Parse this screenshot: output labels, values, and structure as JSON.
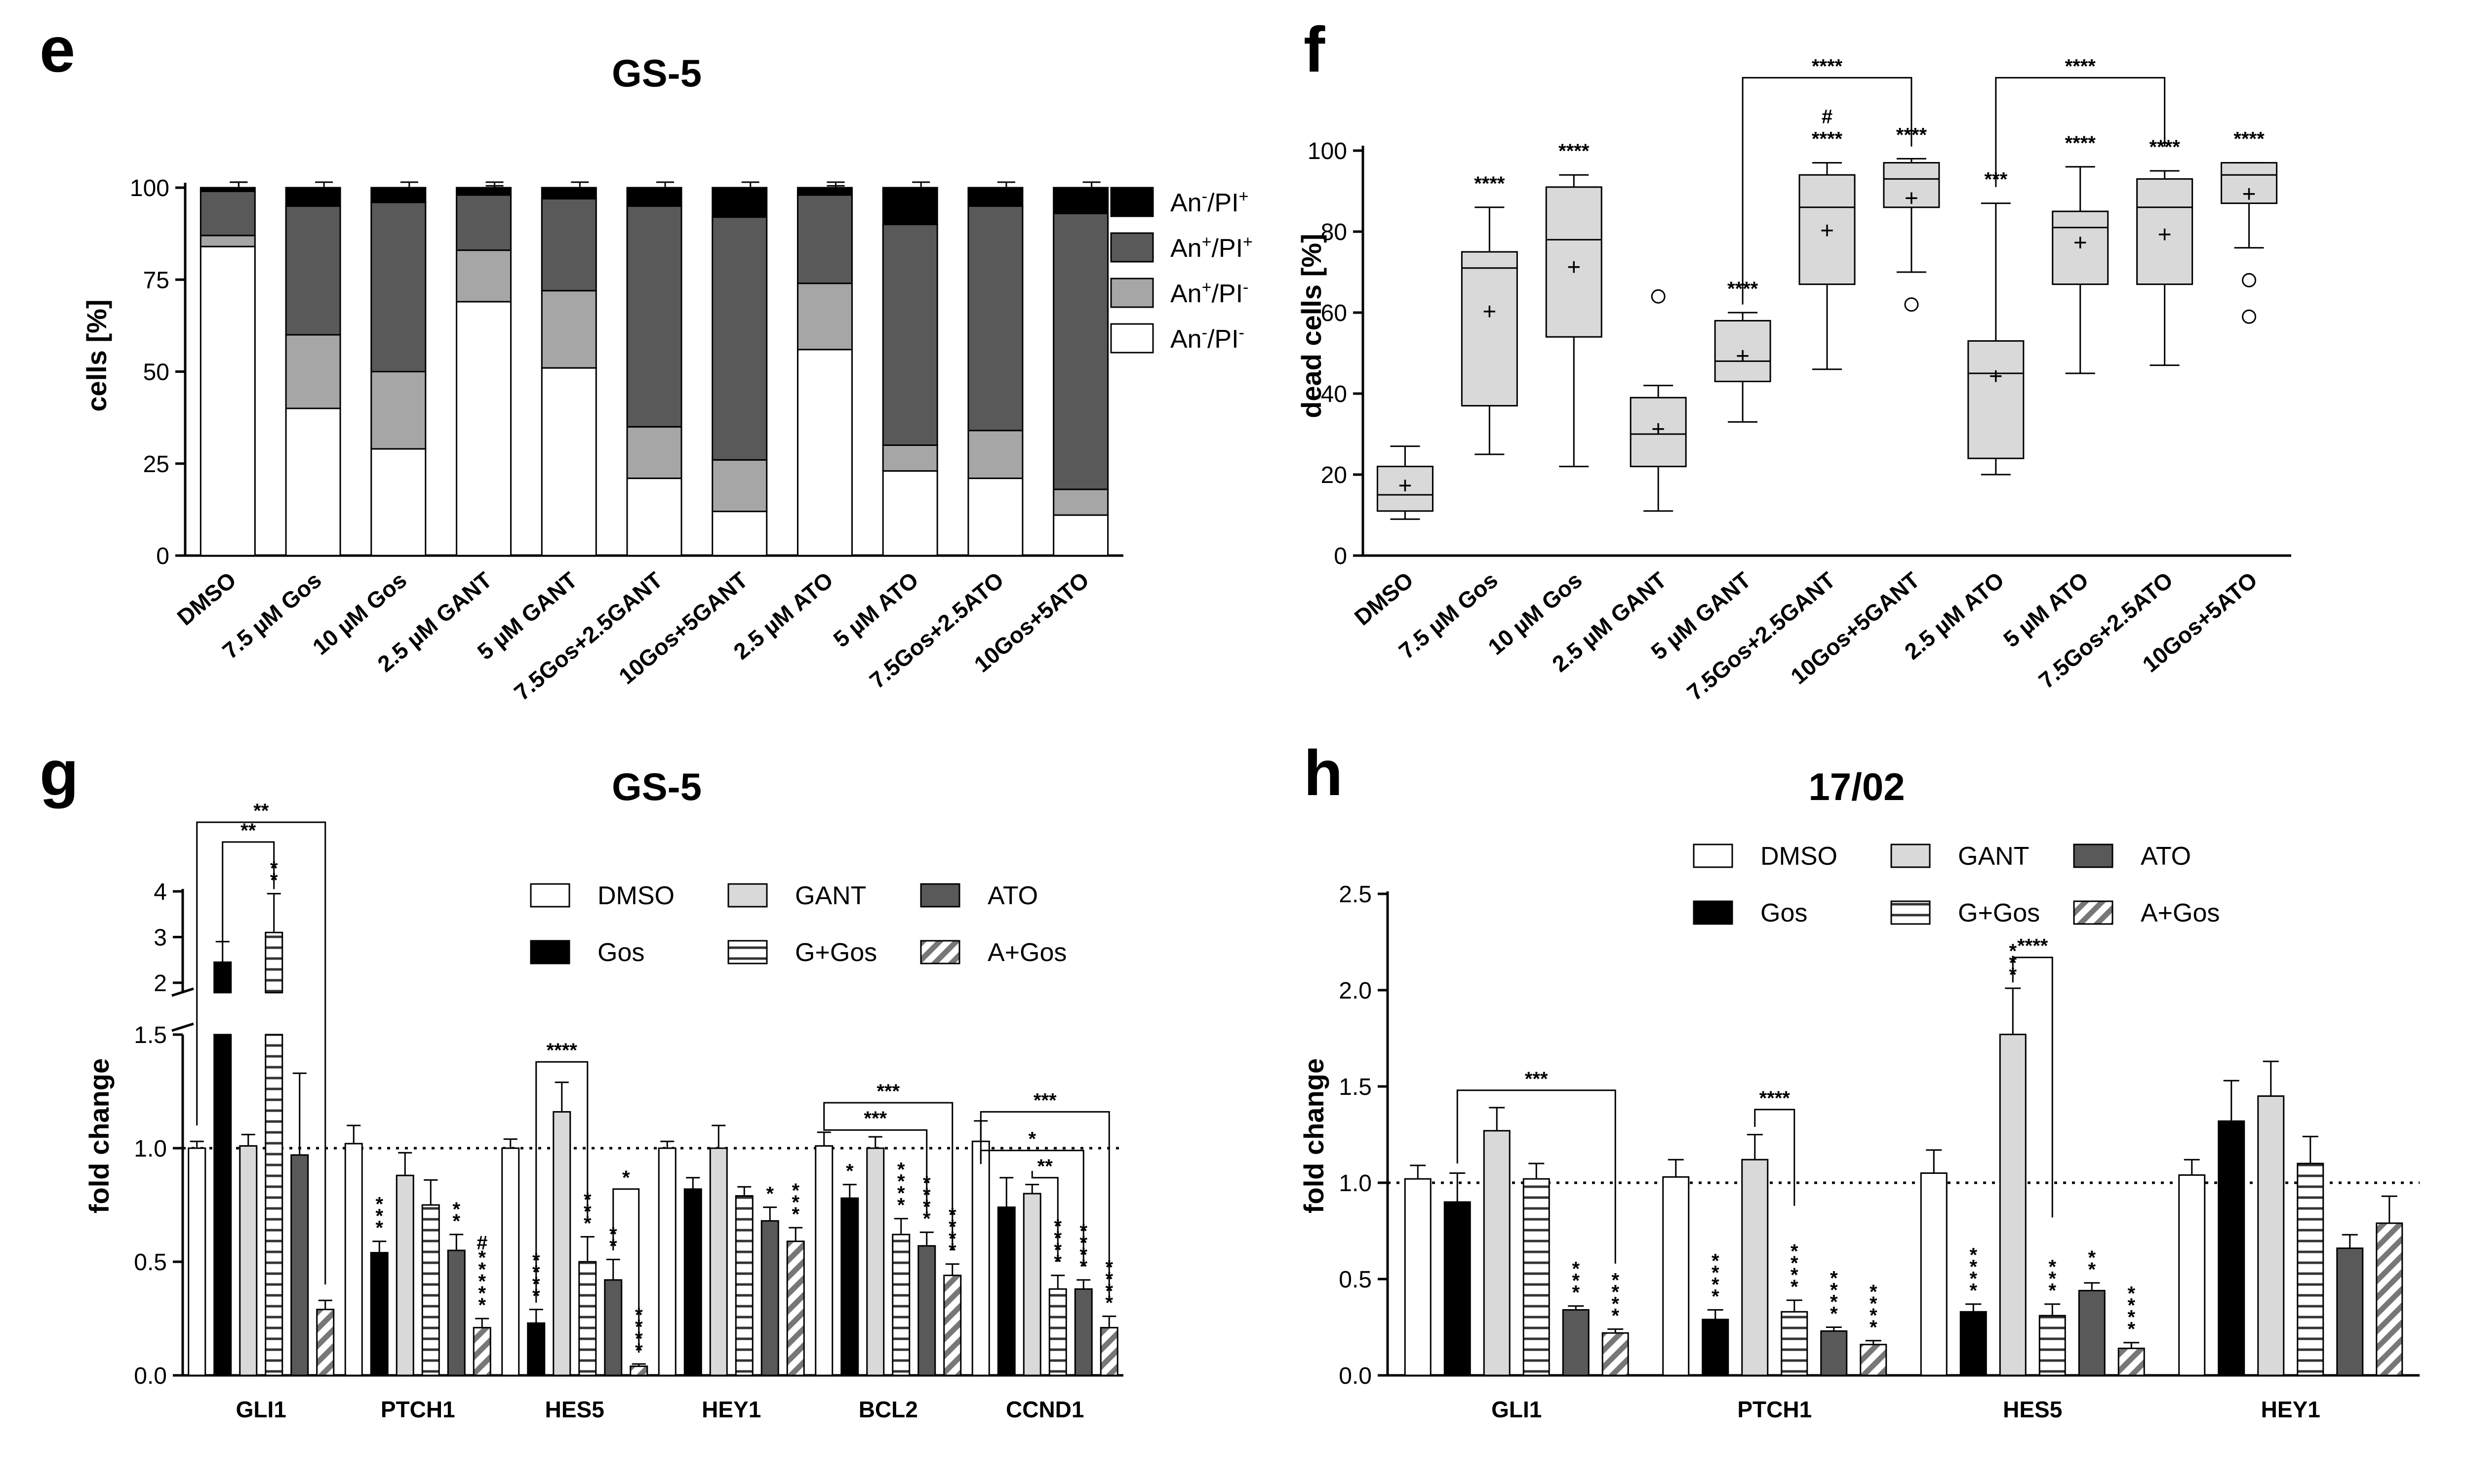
{
  "panel_labels": {
    "e": "e",
    "f": "f",
    "g": "g",
    "h": "h"
  },
  "chart_data": [
    {
      "panel": "e",
      "type": "bar",
      "stacked": true,
      "title": "GS-5",
      "ylabel": "cells [%]",
      "ylim": [
        0,
        100
      ],
      "yticks": [
        "0",
        "25",
        "50",
        "75",
        "100"
      ],
      "categories": [
        "DMSO",
        "7.5 µM Gos",
        "10 µM Gos",
        "2.5 µM GANT",
        "5 µM GANT",
        "7.5Gos+2.5GANT",
        "10Gos+5GANT",
        "2.5 µM ATO",
        "5 µM ATO",
        "7.5Gos+2.5ATO",
        "10Gos+5ATO"
      ],
      "series": [
        {
          "name": "An⁻/PI⁻",
          "color": "#ffffff",
          "values": [
            84,
            40,
            29,
            69,
            51,
            21,
            12,
            56,
            23,
            21,
            11
          ]
        },
        {
          "name": "An⁺/PI⁻",
          "color": "#a6a6a6",
          "values": [
            3,
            20,
            21,
            14,
            21,
            14,
            14,
            18,
            7,
            13,
            7
          ]
        },
        {
          "name": "An⁺/PI⁺",
          "color": "#595959",
          "values": [
            12,
            35,
            46,
            15,
            25,
            60,
            66,
            24,
            60,
            61,
            75
          ]
        },
        {
          "name": "An⁻/PI⁺",
          "color": "#000000",
          "values": [
            1,
            5,
            4,
            2,
            3,
            5,
            8,
            2,
            10,
            5,
            7
          ]
        }
      ],
      "legend": [
        {
          "base": "An",
          "sup1": "-",
          "mid": "/PI",
          "sup2": "+"
        },
        {
          "base": "An",
          "sup1": "+",
          "mid": "/PI",
          "sup2": "+"
        },
        {
          "base": "An",
          "sup1": "+",
          "mid": "/PI",
          "sup2": "-"
        },
        {
          "base": "An",
          "sup1": "-",
          "mid": "/PI",
          "sup2": "-"
        }
      ]
    },
    {
      "panel": "f",
      "type": "boxplot",
      "title": "",
      "ylabel": "dead cells [%]",
      "ylim": [
        0,
        100
      ],
      "yticks": [
        "0",
        "20",
        "40",
        "60",
        "80",
        "100"
      ],
      "categories": [
        "DMSO",
        "7.5 µM Gos",
        "10 µM Gos",
        "2.5 µM GANT",
        "5 µM GANT",
        "7.5Gos+2.5GANT",
        "10Gos+5GANT",
        "2.5 µM ATO",
        "5 µM ATO",
        "7.5Gos+2.5ATO",
        "10Gos+5ATO"
      ],
      "boxes": [
        {
          "min": 9,
          "q1": 11,
          "median": 15,
          "q3": 22,
          "max": 27,
          "mean": 17,
          "outliers": [],
          "sig": ""
        },
        {
          "min": 25,
          "q1": 37,
          "median": 71,
          "q3": 75,
          "max": 86,
          "mean": 60,
          "outliers": [],
          "sig": "****"
        },
        {
          "min": 22,
          "q1": 54,
          "median": 78,
          "q3": 91,
          "max": 94,
          "mean": 71,
          "outliers": [],
          "sig": "****"
        },
        {
          "min": 11,
          "q1": 22,
          "median": 30,
          "q3": 39,
          "max": 42,
          "mean": 31,
          "outliers": [
            64
          ],
          "sig": ""
        },
        {
          "min": 33,
          "q1": 43,
          "median": 48,
          "q3": 58,
          "max": 60,
          "mean": 49,
          "outliers": [],
          "sig": "****"
        },
        {
          "min": 46,
          "q1": 67,
          "median": 86,
          "q3": 94,
          "max": 97,
          "mean": 80,
          "outliers": [],
          "sig": "****",
          "sig2": "#"
        },
        {
          "min": 70,
          "q1": 86,
          "median": 93,
          "q3": 97,
          "max": 98,
          "mean": 88,
          "outliers": [
            62
          ],
          "sig": "****"
        },
        {
          "min": 20,
          "q1": 24,
          "median": 45,
          "q3": 53,
          "max": 87,
          "mean": 44,
          "outliers": [],
          "sig": "***"
        },
        {
          "min": 45,
          "q1": 67,
          "median": 81,
          "q3": 85,
          "max": 96,
          "mean": 77,
          "outliers": [],
          "sig": "****"
        },
        {
          "min": 47,
          "q1": 67,
          "median": 86,
          "q3": 93,
          "max": 95,
          "mean": 79,
          "outliers": [],
          "sig": "****"
        },
        {
          "min": 76,
          "q1": 87,
          "median": 94,
          "q3": 97,
          "max": 97,
          "mean": 89,
          "outliers": [
            68,
            59
          ],
          "sig": "****"
        }
      ],
      "brackets": [
        {
          "from": 4,
          "to": 6,
          "label": "****"
        },
        {
          "from": 7,
          "to": 9,
          "label": "****"
        }
      ]
    },
    {
      "panel": "g",
      "type": "bar",
      "title": "GS-5",
      "ylabel": "fold change",
      "ylim": [
        0,
        4
      ],
      "axis_break": [
        1.5,
        2
      ],
      "yticks_lower": [
        "0.0",
        "0.5",
        "1.0",
        "1.5"
      ],
      "yticks_upper": [
        "2",
        "3",
        "4"
      ],
      "categories": [
        "GLI1",
        "PTCH1",
        "HES5",
        "HEY1",
        "BCL2",
        "CCND1"
      ],
      "series": [
        {
          "name": "DMSO",
          "values": [
            1.0,
            1.02,
            1.0,
            1.0,
            1.01,
            1.03
          ],
          "errors": [
            0.03,
            0.08,
            0.04,
            0.03,
            0.06,
            0.09
          ],
          "sig": [
            "",
            "",
            "",
            "",
            "",
            ""
          ]
        },
        {
          "name": "Gos",
          "values": [
            2.45,
            0.54,
            0.23,
            0.82,
            0.78,
            0.74
          ],
          "errors": [
            0.45,
            0.05,
            0.06,
            0.05,
            0.06,
            0.13
          ],
          "sig": [
            "",
            "***",
            "****",
            "",
            "*",
            ""
          ]
        },
        {
          "name": "GANT",
          "values": [
            1.01,
            0.88,
            1.16,
            1.0,
            1.0,
            0.8
          ],
          "errors": [
            0.05,
            0.1,
            0.13,
            0.1,
            0.05,
            0.04
          ],
          "sig": [
            "",
            "",
            "",
            "",
            "",
            ""
          ]
        },
        {
          "name": "G+Gos",
          "values": [
            3.1,
            0.75,
            0.5,
            0.79,
            0.62,
            0.38
          ],
          "errors": [
            0.85,
            0.11,
            0.11,
            0.04,
            0.07,
            0.06
          ],
          "sig": [
            "**",
            "",
            "***",
            "",
            "****",
            "****"
          ]
        },
        {
          "name": "ATO",
          "values": [
            0.97,
            0.55,
            0.42,
            0.68,
            0.57,
            0.38
          ],
          "errors": [
            0.36,
            0.07,
            0.09,
            0.06,
            0.06,
            0.04
          ],
          "sig": [
            "",
            "**",
            "**",
            "*",
            "****",
            "****"
          ]
        },
        {
          "name": "A+Gos",
          "values": [
            0.29,
            0.21,
            0.04,
            0.59,
            0.44,
            0.21
          ],
          "errors": [
            0.04,
            0.04,
            0.01,
            0.06,
            0.05,
            0.05
          ],
          "sig": [
            "",
            "*****",
            "****",
            "***",
            "****",
            "****"
          ],
          "sig2": [
            "",
            "#",
            "",
            "",
            "",
            ""
          ]
        }
      ],
      "brackets": [
        {
          "label": "**"
        },
        {
          "label": "**"
        },
        {
          "label": "****"
        },
        {
          "label": "*"
        },
        {
          "label": "***"
        },
        {
          "label": "***"
        },
        {
          "label": "***"
        },
        {
          "label": "*"
        },
        {
          "label": "**"
        }
      ],
      "reference_line": 1.0
    },
    {
      "panel": "h",
      "type": "bar",
      "title": "17/02",
      "ylabel": "fold change",
      "ylim": [
        0,
        2.5
      ],
      "yticks": [
        "0.0",
        "0.5",
        "1.0",
        "1.5",
        "2.0",
        "2.5"
      ],
      "categories": [
        "GLI1",
        "PTCH1",
        "HES5",
        "HEY1"
      ],
      "series": [
        {
          "name": "DMSO",
          "values": [
            1.02,
            1.03,
            1.05,
            1.04
          ],
          "errors": [
            0.07,
            0.09,
            0.12,
            0.08
          ],
          "sig": [
            "",
            "",
            "",
            ""
          ]
        },
        {
          "name": "Gos",
          "values": [
            0.9,
            0.29,
            0.33,
            1.32
          ],
          "errors": [
            0.15,
            0.05,
            0.04,
            0.21
          ],
          "sig": [
            "",
            "****",
            "****",
            ""
          ]
        },
        {
          "name": "GANT",
          "values": [
            1.27,
            1.12,
            1.77,
            1.45
          ],
          "errors": [
            0.12,
            0.13,
            0.24,
            0.18
          ],
          "sig": [
            "",
            "",
            "***",
            ""
          ]
        },
        {
          "name": "G+Gos",
          "values": [
            1.02,
            0.33,
            0.31,
            1.1
          ],
          "errors": [
            0.08,
            0.06,
            0.06,
            0.14
          ],
          "sig": [
            "",
            "****",
            "***",
            ""
          ]
        },
        {
          "name": "ATO",
          "values": [
            0.34,
            0.23,
            0.44,
            0.66
          ],
          "errors": [
            0.02,
            0.02,
            0.04,
            0.07
          ],
          "sig": [
            "***",
            "****",
            "**",
            ""
          ]
        },
        {
          "name": "A+Gos",
          "values": [
            0.22,
            0.16,
            0.14,
            0.79
          ],
          "errors": [
            0.02,
            0.02,
            0.03,
            0.14
          ],
          "sig": [
            "****",
            "****",
            "****",
            ""
          ]
        }
      ],
      "brackets": [
        {
          "label": "***"
        },
        {
          "label": "****"
        },
        {
          "label": "****"
        }
      ],
      "reference_line": 1.0
    }
  ]
}
